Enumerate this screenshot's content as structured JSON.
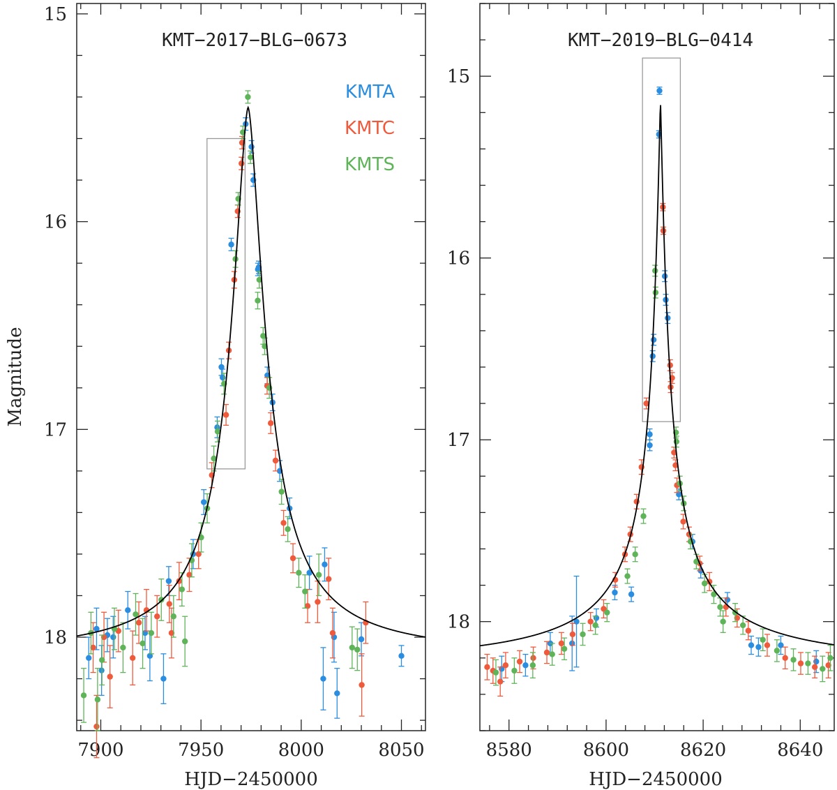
{
  "figure": {
    "ylabel": "Magnitude"
  },
  "colors": {
    "KMTA": "#2a8de0",
    "KMTC": "#f05a3c",
    "KMTS": "#5fb45a",
    "model": "#000000",
    "box": "#999999",
    "axis": "#222222"
  },
  "legend": [
    "KMTA",
    "KMTC",
    "KMTS"
  ],
  "chart_data": [
    {
      "type": "scatter",
      "title": "KMT−2017−BLG−0673",
      "xlabel": "HJD−2450000",
      "ylabel": "Magnitude",
      "xlim": [
        7888,
        8062
      ],
      "ylim": [
        18.45,
        14.95
      ],
      "xticks": [
        7900,
        7950,
        8000,
        8050
      ],
      "xtick_labels": [
        "7900",
        "7950",
        "8000",
        "8050"
      ],
      "yticks": [
        15,
        16,
        17,
        18
      ],
      "ytick_labels": [
        "15",
        "16",
        "17",
        "18"
      ],
      "model": {
        "t0": 7973.5,
        "mag_peak": 15.45,
        "mag_base": 18.09,
        "width": 11.0,
        "power": 1.6
      },
      "highlight_box": {
        "x0": 7953,
        "x1": 7972,
        "y0": 15.6,
        "y1": 17.19
      },
      "series": [
        {
          "name": "KMTA",
          "points": [
            [
              7972.3,
              15.53,
              0.03
            ],
            [
              7975.2,
              15.64,
              0.03
            ],
            [
              7976.1,
              15.8,
              0.03
            ],
            [
              7965.1,
              16.11,
              0.03
            ],
            [
              7978.4,
              16.23,
              0.03
            ],
            [
              7978.8,
              16.22,
              0.03
            ],
            [
              7960.2,
              16.7,
              0.04
            ],
            [
              7960.8,
              16.75,
              0.04
            ],
            [
              7983.1,
              16.74,
              0.04
            ],
            [
              7958.1,
              16.99,
              0.05
            ],
            [
              7985.7,
              16.87,
              0.04
            ],
            [
              7989.3,
              17.2,
              0.05
            ],
            [
              7994.2,
              17.38,
              0.05
            ],
            [
              7951.4,
              17.35,
              0.06
            ],
            [
              7946.1,
              17.6,
              0.07
            ],
            [
              7933.9,
              17.73,
              0.07
            ],
            [
              7922.1,
              17.98,
              0.08
            ],
            [
              7903.3,
              17.99,
              0.08
            ],
            [
              7913.5,
              17.87,
              0.09
            ],
            [
              7897.9,
              17.96,
              0.1
            ],
            [
              7900.4,
              18.16,
              0.12
            ],
            [
              7906.2,
              18.0,
              0.1
            ],
            [
              7924.5,
              18.09,
              0.12
            ],
            [
              8004.1,
              17.69,
              0.08
            ],
            [
              8011.7,
              17.65,
              0.08
            ],
            [
              8016.4,
              18.0,
              0.12
            ],
            [
              8030.0,
              18.01,
              0.08
            ],
            [
              8050.0,
              18.09,
              0.05
            ],
            [
              8011.0,
              18.2,
              0.15
            ],
            [
              8017.9,
              18.27,
              0.12
            ],
            [
              7931.3,
              18.2,
              0.12
            ],
            [
              7894.0,
              18.1,
              0.1
            ]
          ]
        },
        {
          "name": "KMTC",
          "points": [
            [
              7970.2,
              15.72,
              0.03
            ],
            [
              7970.5,
              15.62,
              0.03
            ],
            [
              7968.3,
              15.95,
              0.03
            ],
            [
              7966.6,
              16.28,
              0.04
            ],
            [
              7963.9,
              16.62,
              0.04
            ],
            [
              7983.0,
              16.79,
              0.04
            ],
            [
              7984.8,
              16.97,
              0.05
            ],
            [
              7987.2,
              17.15,
              0.05
            ],
            [
              7962.5,
              16.93,
              0.05
            ],
            [
              7955.4,
              17.22,
              0.06
            ],
            [
              7991.2,
              17.45,
              0.06
            ],
            [
              7995.9,
              17.62,
              0.07
            ],
            [
              7948.8,
              17.6,
              0.07
            ],
            [
              7944.2,
              17.7,
              0.08
            ],
            [
              7939.1,
              17.73,
              0.09
            ],
            [
              7934.2,
              17.84,
              0.09
            ],
            [
              7928.1,
              17.9,
              0.1
            ],
            [
              7919.0,
              17.93,
              0.1
            ],
            [
              7908.8,
              17.97,
              0.1
            ],
            [
              7901.6,
              18.0,
              0.12
            ],
            [
              7896.2,
              18.05,
              0.12
            ],
            [
              7904.6,
              18.19,
              0.15
            ],
            [
              7897.9,
              18.43,
              0.15
            ],
            [
              7935.3,
              17.98,
              0.12
            ],
            [
              8003.2,
              17.85,
              0.08
            ],
            [
              8008.2,
              17.83,
              0.1
            ],
            [
              8013.7,
              17.72,
              0.1
            ],
            [
              8032.2,
              17.93,
              0.1
            ],
            [
              8030.2,
              18.23,
              0.15
            ],
            [
              8015.7,
              17.98,
              0.12
            ],
            [
              7915.9,
              18.1,
              0.13
            ],
            [
              7922.8,
              17.87,
              0.1
            ]
          ]
        },
        {
          "name": "KMTS",
          "points": [
            [
              7973.4,
              15.4,
              0.03
            ],
            [
              7970.9,
              15.57,
              0.03
            ],
            [
              7974.7,
              15.69,
              0.03
            ],
            [
              7968.6,
              15.89,
              0.03
            ],
            [
              7967.2,
              16.18,
              0.04
            ],
            [
              7979.1,
              16.28,
              0.04
            ],
            [
              7978.3,
              16.38,
              0.04
            ],
            [
              7981.0,
              16.55,
              0.04
            ],
            [
              7961.5,
              16.78,
              0.05
            ],
            [
              7981.8,
              16.6,
              0.04
            ],
            [
              7958.3,
              17.01,
              0.05
            ],
            [
              7956.4,
              17.14,
              0.06
            ],
            [
              7953.1,
              17.38,
              0.07
            ],
            [
              7984.1,
              16.8,
              0.05
            ],
            [
              7990.2,
              17.3,
              0.06
            ],
            [
              7993.3,
              17.48,
              0.06
            ],
            [
              7998.8,
              17.69,
              0.07
            ],
            [
              7950.1,
              17.52,
              0.07
            ],
            [
              7945.4,
              17.63,
              0.08
            ],
            [
              7940.5,
              17.77,
              0.08
            ],
            [
              7936.3,
              17.9,
              0.1
            ],
            [
              7930.2,
              17.82,
              0.1
            ],
            [
              7925.2,
              17.98,
              0.1
            ],
            [
              7917.4,
              17.89,
              0.1
            ],
            [
              7911.1,
              18.05,
              0.12
            ],
            [
              7906.8,
              17.96,
              0.1
            ],
            [
              7900.6,
              18.11,
              0.12
            ],
            [
              7891.5,
              18.28,
              0.13
            ],
            [
              7895.1,
              17.98,
              0.1
            ],
            [
              7898.4,
              18.3,
              0.15
            ],
            [
              8001.9,
              17.78,
              0.08
            ],
            [
              8008.8,
              17.7,
              0.1
            ],
            [
              8025.4,
              18.05,
              0.1
            ],
            [
              8028.0,
              18.06,
              0.1
            ],
            [
              7920.9,
              18.03,
              0.12
            ],
            [
              7942.0,
              18.02,
              0.12
            ]
          ]
        }
      ]
    },
    {
      "type": "scatter",
      "title": "KMT−2019−BLG−0414",
      "xlabel": "HJD−2450000",
      "ylabel": "",
      "xlim": [
        8574,
        8647
      ],
      "ylim": [
        18.6,
        14.6
      ],
      "xticks": [
        8580,
        8600,
        8620,
        8640
      ],
      "xtick_labels": [
        "8580",
        "8600",
        "8620",
        "8640"
      ],
      "yticks": [
        15,
        16,
        17,
        18
      ],
      "ytick_labels": [
        "15",
        "16",
        "17",
        "18"
      ],
      "model": {
        "t0": 8611.2,
        "mag_peak": 15.13,
        "mag_base": 18.26,
        "width": 2.1,
        "power": 1.1
      },
      "highlight_box": {
        "x0": 8607.5,
        "x1": 8615.3,
        "y0": 14.9,
        "y1": 16.9
      },
      "series": [
        {
          "name": "KMTA",
          "points": [
            [
              8611.0,
              15.08,
              0.02
            ],
            [
              8610.9,
              15.32,
              0.02
            ],
            [
              8612.1,
              16.1,
              0.03
            ],
            [
              8612.3,
              16.23,
              0.03
            ],
            [
              8612.7,
              16.33,
              0.03
            ],
            [
              8609.8,
              16.45,
              0.03
            ],
            [
              8609.6,
              16.54,
              0.03
            ],
            [
              8609.0,
              16.97,
              0.03
            ],
            [
              8609.0,
              17.03,
              0.03
            ],
            [
              8615.0,
              17.3,
              0.03
            ],
            [
              8617.8,
              17.56,
              0.04
            ],
            [
              8619.5,
              17.72,
              0.04
            ],
            [
              8625.0,
              17.88,
              0.04
            ],
            [
              8629.9,
              18.13,
              0.05
            ],
            [
              8631.4,
              18.14,
              0.05
            ],
            [
              8605.2,
              17.85,
              0.04
            ],
            [
              8601.8,
              17.84,
              0.04
            ],
            [
              8598.0,
              17.98,
              0.05
            ],
            [
              8593.9,
              18.0,
              0.25
            ],
            [
              8593.0,
              18.12,
              0.15
            ],
            [
              8588.5,
              18.12,
              0.06
            ],
            [
              8583.4,
              18.24,
              0.06
            ],
            [
              8578.5,
              18.26,
              0.07
            ],
            [
              8643.3,
              18.22,
              0.06
            ],
            [
              8636.0,
              18.13,
              0.05
            ]
          ]
        },
        {
          "name": "KMTC",
          "points": [
            [
              8611.7,
              15.72,
              0.02
            ],
            [
              8611.8,
              15.85,
              0.02
            ],
            [
              8613.2,
              16.59,
              0.03
            ],
            [
              8613.3,
              16.71,
              0.03
            ],
            [
              8613.6,
              16.66,
              0.03
            ],
            [
              8608.3,
              16.8,
              0.03
            ],
            [
              8614.0,
              17.07,
              0.03
            ],
            [
              8614.3,
              17.14,
              0.03
            ],
            [
              8607.3,
              17.15,
              0.04
            ],
            [
              8614.6,
              17.25,
              0.04
            ],
            [
              8606.3,
              17.34,
              0.04
            ],
            [
              8615.9,
              17.45,
              0.04
            ],
            [
              8605.0,
              17.52,
              0.04
            ],
            [
              8617.1,
              17.52,
              0.04
            ],
            [
              8603.9,
              17.63,
              0.04
            ],
            [
              8619.3,
              17.68,
              0.04
            ],
            [
              8601.9,
              17.77,
              0.04
            ],
            [
              8621.3,
              17.78,
              0.05
            ],
            [
              8624.7,
              17.92,
              0.05
            ],
            [
              8599.5,
              17.93,
              0.05
            ],
            [
              8596.8,
              18.0,
              0.05
            ],
            [
              8593.1,
              18.07,
              0.06
            ],
            [
              8590.8,
              18.12,
              0.06
            ],
            [
              8587.8,
              18.17,
              0.06
            ],
            [
              8585.0,
              18.2,
              0.06
            ],
            [
              8582.2,
              18.22,
              0.06
            ],
            [
              8579.3,
              18.24,
              0.07
            ],
            [
              8576.7,
              18.27,
              0.07
            ],
            [
              8575.5,
              18.25,
              0.07
            ],
            [
              8629.3,
              18.05,
              0.05
            ],
            [
              8633.2,
              18.13,
              0.06
            ],
            [
              8636.9,
              18.2,
              0.06
            ],
            [
              8640.1,
              18.23,
              0.06
            ],
            [
              8643.0,
              18.25,
              0.06
            ],
            [
              8645.8,
              18.24,
              0.07
            ],
            [
              8627.0,
              17.98,
              0.05
            ],
            [
              8578.2,
              18.33,
              0.08
            ]
          ]
        },
        {
          "name": "KMTS",
          "points": [
            [
              8610.1,
              16.07,
              0.03
            ],
            [
              8610.2,
              16.19,
              0.03
            ],
            [
              8614.4,
              16.96,
              0.03
            ],
            [
              8614.5,
              17.01,
              0.03
            ],
            [
              8615.2,
              17.24,
              0.04
            ],
            [
              8616.0,
              17.35,
              0.04
            ],
            [
              8607.7,
              17.42,
              0.04
            ],
            [
              8617.4,
              17.56,
              0.04
            ],
            [
              8606.0,
              17.63,
              0.04
            ],
            [
              8618.6,
              17.67,
              0.04
            ],
            [
              8604.4,
              17.75,
              0.04
            ],
            [
              8620.3,
              17.79,
              0.05
            ],
            [
              8622.2,
              17.85,
              0.05
            ],
            [
              8623.5,
              17.92,
              0.05
            ],
            [
              8600.2,
              17.95,
              0.05
            ],
            [
              8597.8,
              18.02,
              0.05
            ],
            [
              8595.2,
              18.07,
              0.06
            ],
            [
              8591.4,
              18.15,
              0.06
            ],
            [
              8588.9,
              18.18,
              0.06
            ],
            [
              8584.9,
              18.24,
              0.07
            ],
            [
              8581.1,
              18.27,
              0.07
            ],
            [
              8577.3,
              18.28,
              0.07
            ],
            [
              8626.6,
              17.95,
              0.05
            ],
            [
              8628.2,
              18.02,
              0.05
            ],
            [
              8632.3,
              18.1,
              0.06
            ],
            [
              8635.2,
              18.16,
              0.06
            ],
            [
              8638.6,
              18.21,
              0.06
            ],
            [
              8641.6,
              18.23,
              0.06
            ],
            [
              8644.6,
              18.26,
              0.07
            ],
            [
              8646.2,
              18.2,
              0.07
            ],
            [
              8624.1,
              18.0,
              0.06
            ]
          ]
        }
      ]
    }
  ]
}
